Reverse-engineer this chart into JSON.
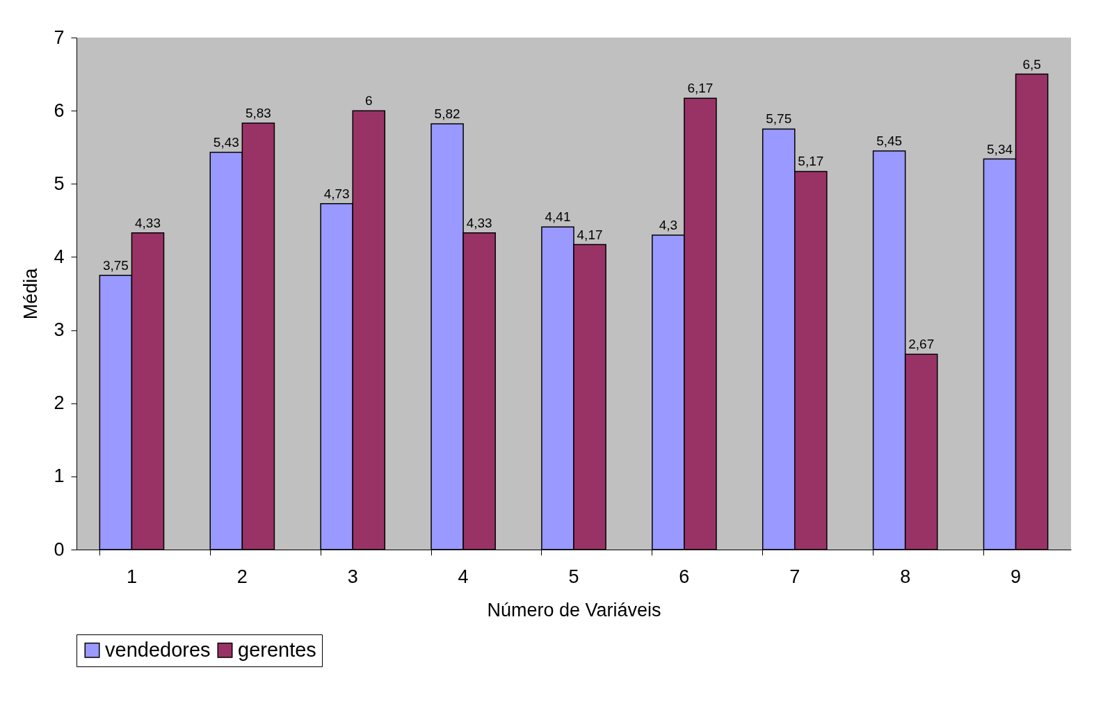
{
  "chart_data": {
    "type": "bar",
    "xlabel": "Número de Variáveis",
    "ylabel": "Média",
    "categories": [
      "1",
      "2",
      "3",
      "4",
      "5",
      "6",
      "7",
      "8",
      "9"
    ],
    "series": [
      {
        "name": "vendedores",
        "color": "#9999ff",
        "values": [
          3.75,
          5.43,
          4.73,
          5.82,
          4.41,
          4.3,
          5.75,
          5.45,
          5.34
        ],
        "value_labels": [
          "3,75",
          "5,43",
          "4,73",
          "5,82",
          "4,41",
          "4,3",
          "5,75",
          "5,45",
          "5,34"
        ]
      },
      {
        "name": "gerentes",
        "color": "#993366",
        "values": [
          4.33,
          5.83,
          6,
          4.33,
          4.17,
          6.17,
          5.17,
          2.67,
          6.5
        ],
        "value_labels": [
          "4,33",
          "5,83",
          "6",
          "4,33",
          "4,17",
          "6,17",
          "5,17",
          "2,67",
          "6,5"
        ]
      }
    ],
    "ylim": [
      0,
      7
    ],
    "yticks": [
      0,
      1,
      2,
      3,
      4,
      5,
      6,
      7
    ],
    "grid": false,
    "legend": "bottom"
  }
}
